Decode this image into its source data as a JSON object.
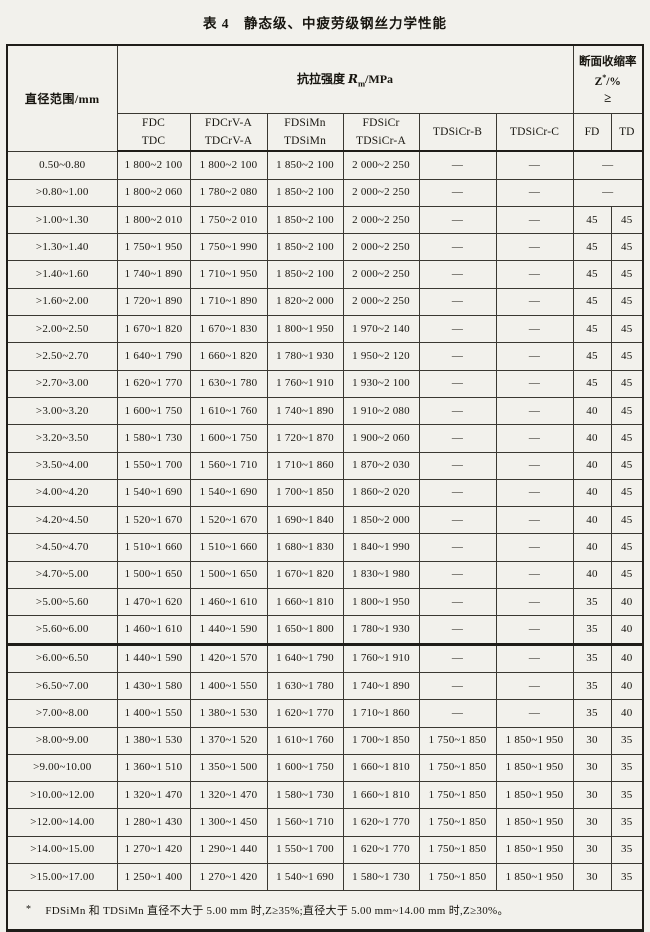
{
  "page": {
    "title": "表 4　静态级、中疲劳级钢丝力学性能"
  },
  "table": {
    "header": {
      "diameter_label": "直径范围/mm",
      "tensile": {
        "prefix": "抗拉强度 ",
        "symbol": "R",
        "subscript": "m",
        "suffix": "/MPa"
      },
      "reduction": {
        "line1": "断面收缩率",
        "symbol": "Z",
        "superscript": "*",
        "unit": "/%",
        "gte": "≥"
      },
      "grade_columns": [
        {
          "line1": "FDC",
          "line2": "TDC"
        },
        {
          "line1": "FDCrV-A",
          "line2": "TDCrV-A"
        },
        {
          "line1": "FDSiMn",
          "line2": "TDSiMn"
        },
        {
          "line1": "FDSiCr",
          "line2": "TDSiCr-A"
        },
        {
          "line1": "TDSiCr-B",
          "line2": ""
        },
        {
          "line1": "TDSiCr-C",
          "line2": ""
        }
      ],
      "fd_label": "FD",
      "td_label": "TD"
    },
    "rows": [
      {
        "d": "0.50~0.80",
        "v": [
          "1 800~2 100",
          "1 800~2 100",
          "1 850~2 100",
          "2 000~2 250",
          "—",
          "—"
        ],
        "z": [
          "—"
        ]
      },
      {
        "d": ">0.80~1.00",
        "v": [
          "1 800~2 060",
          "1 780~2 080",
          "1 850~2 100",
          "2 000~2 250",
          "—",
          "—"
        ],
        "z": [
          "—"
        ]
      },
      {
        "d": ">1.00~1.30",
        "v": [
          "1 800~2 010",
          "1 750~2 010",
          "1 850~2 100",
          "2 000~2 250",
          "—",
          "—"
        ],
        "z": [
          "45",
          "45"
        ]
      },
      {
        "d": ">1.30~1.40",
        "v": [
          "1 750~1 950",
          "1 750~1 990",
          "1 850~2 100",
          "2 000~2 250",
          "—",
          "—"
        ],
        "z": [
          "45",
          "45"
        ]
      },
      {
        "d": ">1.40~1.60",
        "v": [
          "1 740~1 890",
          "1 710~1 950",
          "1 850~2 100",
          "2 000~2 250",
          "—",
          "—"
        ],
        "z": [
          "45",
          "45"
        ]
      },
      {
        "d": ">1.60~2.00",
        "v": [
          "1 720~1 890",
          "1 710~1 890",
          "1 820~2 000",
          "2 000~2 250",
          "—",
          "—"
        ],
        "z": [
          "45",
          "45"
        ]
      },
      {
        "d": ">2.00~2.50",
        "v": [
          "1 670~1 820",
          "1 670~1 830",
          "1 800~1 950",
          "1 970~2 140",
          "—",
          "—"
        ],
        "z": [
          "45",
          "45"
        ]
      },
      {
        "d": ">2.50~2.70",
        "v": [
          "1 640~1 790",
          "1 660~1 820",
          "1 780~1 930",
          "1 950~2 120",
          "—",
          "—"
        ],
        "z": [
          "45",
          "45"
        ]
      },
      {
        "d": ">2.70~3.00",
        "v": [
          "1 620~1 770",
          "1 630~1 780",
          "1 760~1 910",
          "1 930~2 100",
          "—",
          "—"
        ],
        "z": [
          "45",
          "45"
        ]
      },
      {
        "d": ">3.00~3.20",
        "v": [
          "1 600~1 750",
          "1 610~1 760",
          "1 740~1 890",
          "1 910~2 080",
          "—",
          "—"
        ],
        "z": [
          "40",
          "45"
        ]
      },
      {
        "d": ">3.20~3.50",
        "v": [
          "1 580~1 730",
          "1 600~1 750",
          "1 720~1 870",
          "1 900~2 060",
          "—",
          "—"
        ],
        "z": [
          "40",
          "45"
        ]
      },
      {
        "d": ">3.50~4.00",
        "v": [
          "1 550~1 700",
          "1 560~1 710",
          "1 710~1 860",
          "1 870~2 030",
          "—",
          "—"
        ],
        "z": [
          "40",
          "45"
        ]
      },
      {
        "d": ">4.00~4.20",
        "v": [
          "1 540~1 690",
          "1 540~1 690",
          "1 700~1 850",
          "1 860~2 020",
          "—",
          "—"
        ],
        "z": [
          "40",
          "45"
        ]
      },
      {
        "d": ">4.20~4.50",
        "v": [
          "1 520~1 670",
          "1 520~1 670",
          "1 690~1 840",
          "1 850~2 000",
          "—",
          "—"
        ],
        "z": [
          "40",
          "45"
        ]
      },
      {
        "d": ">4.50~4.70",
        "v": [
          "1 510~1 660",
          "1 510~1 660",
          "1 680~1 830",
          "1 840~1 990",
          "—",
          "—"
        ],
        "z": [
          "40",
          "45"
        ]
      },
      {
        "d": ">4.70~5.00",
        "v": [
          "1 500~1 650",
          "1 500~1 650",
          "1 670~1 820",
          "1 830~1 980",
          "—",
          "—"
        ],
        "z": [
          "40",
          "45"
        ]
      },
      {
        "d": ">5.00~5.60",
        "v": [
          "1 470~1 620",
          "1 460~1 610",
          "1 660~1 810",
          "1 800~1 950",
          "—",
          "—"
        ],
        "z": [
          "35",
          "40"
        ]
      },
      {
        "d": ">5.60~6.00",
        "v": [
          "1 460~1 610",
          "1 440~1 590",
          "1 650~1 800",
          "1 780~1 930",
          "—",
          "—"
        ],
        "z": [
          "35",
          "40"
        ]
      },
      {
        "d": ">6.00~6.50",
        "v": [
          "1 440~1 590",
          "1 420~1 570",
          "1 640~1 790",
          "1 760~1 910",
          "—",
          "—"
        ],
        "z": [
          "35",
          "40"
        ],
        "thick_top": true
      },
      {
        "d": ">6.50~7.00",
        "v": [
          "1 430~1 580",
          "1 400~1 550",
          "1 630~1 780",
          "1 740~1 890",
          "—",
          "—"
        ],
        "z": [
          "35",
          "40"
        ]
      },
      {
        "d": ">7.00~8.00",
        "v": [
          "1 400~1 550",
          "1 380~1 530",
          "1 620~1 770",
          "1 710~1 860",
          "—",
          "—"
        ],
        "z": [
          "35",
          "40"
        ]
      },
      {
        "d": ">8.00~9.00",
        "v": [
          "1 380~1 530",
          "1 370~1 520",
          "1 610~1 760",
          "1 700~1 850",
          "1 750~1 850",
          "1 850~1 950"
        ],
        "z": [
          "30",
          "35"
        ]
      },
      {
        "d": ">9.00~10.00",
        "v": [
          "1 360~1 510",
          "1 350~1 500",
          "1 600~1 750",
          "1 660~1 810",
          "1 750~1 850",
          "1 850~1 950"
        ],
        "z": [
          "30",
          "35"
        ]
      },
      {
        "d": ">10.00~12.00",
        "v": [
          "1 320~1 470",
          "1 320~1 470",
          "1 580~1 730",
          "1 660~1 810",
          "1 750~1 850",
          "1 850~1 950"
        ],
        "z": [
          "30",
          "35"
        ]
      },
      {
        "d": ">12.00~14.00",
        "v": [
          "1 280~1 430",
          "1 300~1 450",
          "1 560~1 710",
          "1 620~1 770",
          "1 750~1 850",
          "1 850~1 950"
        ],
        "z": [
          "30",
          "35"
        ]
      },
      {
        "d": ">14.00~15.00",
        "v": [
          "1 270~1 420",
          "1 290~1 440",
          "1 550~1 700",
          "1 620~1 770",
          "1 750~1 850",
          "1 850~1 950"
        ],
        "z": [
          "30",
          "35"
        ]
      },
      {
        "d": ">15.00~17.00",
        "v": [
          "1 250~1 400",
          "1 270~1 420",
          "1 540~1 690",
          "1 580~1 730",
          "1 750~1 850",
          "1 850~1 950"
        ],
        "z": [
          "30",
          "35"
        ]
      }
    ],
    "footnote": {
      "marker": "*",
      "text": "FDSiMn 和 TDSiMn 直径不大于 5.00 mm 时,Z≥35%;直径大于 5.00 mm~14.00 mm 时,Z≥30%。"
    }
  }
}
